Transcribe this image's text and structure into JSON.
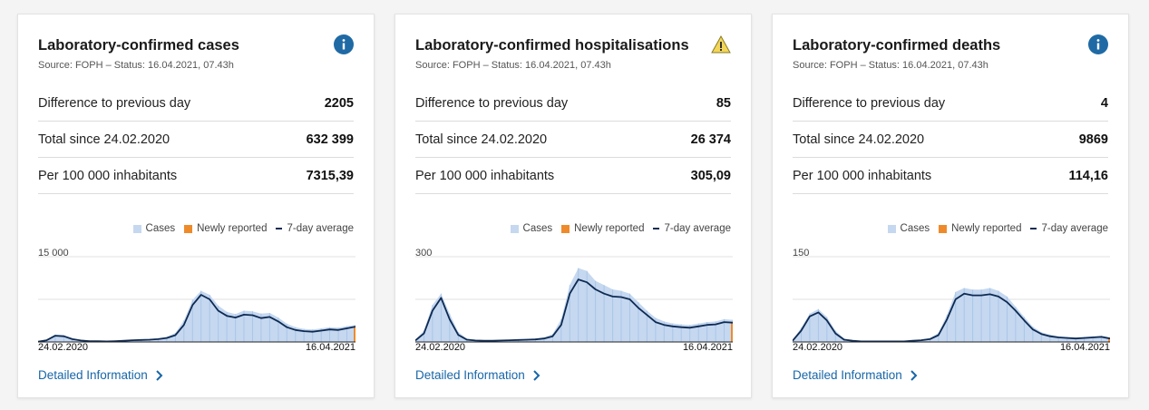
{
  "legend": {
    "cases": "Cases",
    "newly_reported": "Newly reported",
    "avg": "7-day average"
  },
  "link_label": "Detailed Information",
  "colors": {
    "bar": "#c5d8f0",
    "line": "#0e2a52",
    "new": "#ef8a2b",
    "info": "#1f6aa5",
    "warning": "#f2d65a"
  },
  "cards": [
    {
      "title": "Laboratory-confirmed cases",
      "source": "Source: FOPH – Status: 16.04.2021, 07.43h",
      "status_icon": "info-icon",
      "rows": [
        {
          "label": "Difference to previous day",
          "value": "2205"
        },
        {
          "label": "Total since 24.02.2020",
          "value": "632 399"
        },
        {
          "label": "Per 100 000 inhabitants",
          "value": "7315,39"
        }
      ],
      "chart_data": {
        "type": "area",
        "ymax_label": "15 000",
        "x_start": "24.02.2020",
        "x_end": "16.04.2021",
        "ylim": [
          0,
          15000
        ],
        "avg": [
          50,
          300,
          1100,
          1000,
          500,
          250,
          150,
          120,
          100,
          150,
          200,
          300,
          350,
          400,
          500,
          700,
          1200,
          3000,
          6500,
          8300,
          7500,
          5500,
          4600,
          4300,
          4800,
          4700,
          4200,
          4400,
          3600,
          2600,
          2100,
          1900,
          1800,
          2000,
          2200,
          2100,
          2400,
          2700
        ],
        "bars": [
          70,
          400,
          1300,
          1200,
          650,
          350,
          220,
          170,
          150,
          200,
          260,
          380,
          450,
          520,
          650,
          900,
          1600,
          3800,
          7400,
          9000,
          8300,
          6400,
          5300,
          4900,
          5500,
          5400,
          5000,
          5100,
          4300,
          3200,
          2600,
          2300,
          2200,
          2400,
          2600,
          2500,
          2800,
          3000
        ]
      }
    },
    {
      "title": "Laboratory-confirmed hospitalisations",
      "source": "Source: FOPH – Status: 16.04.2021, 07.43h",
      "status_icon": "warning-icon",
      "rows": [
        {
          "label": "Difference to previous day",
          "value": "85"
        },
        {
          "label": "Total since 24.02.2020",
          "value": "26 374"
        },
        {
          "label": "Per 100 000 inhabitants",
          "value": "305,09"
        }
      ],
      "chart_data": {
        "type": "area",
        "ymax_label": "300",
        "x_start": "24.02.2020",
        "x_end": "16.04.2021",
        "ylim": [
          0,
          300
        ],
        "avg": [
          5,
          30,
          110,
          155,
          80,
          25,
          8,
          5,
          4,
          4,
          5,
          6,
          7,
          8,
          9,
          12,
          20,
          60,
          170,
          220,
          210,
          185,
          170,
          160,
          158,
          150,
          120,
          95,
          70,
          60,
          55,
          52,
          50,
          55,
          60,
          62,
          70,
          68
        ],
        "bars": [
          8,
          40,
          130,
          170,
          100,
          35,
          12,
          8,
          6,
          6,
          7,
          8,
          9,
          10,
          12,
          16,
          28,
          80,
          200,
          260,
          250,
          215,
          200,
          185,
          180,
          170,
          140,
          110,
          85,
          72,
          65,
          62,
          60,
          65,
          70,
          72,
          80,
          78
        ]
      }
    },
    {
      "title": "Laboratory-confirmed deaths",
      "source": "Source: FOPH – Status: 16.04.2021, 07.43h",
      "status_icon": "info-icon",
      "rows": [
        {
          "label": "Difference to previous day",
          "value": "4"
        },
        {
          "label": "Total since 24.02.2020",
          "value": "9869"
        },
        {
          "label": "Per 100 000 inhabitants",
          "value": "114,16"
        }
      ],
      "chart_data": {
        "type": "area",
        "ymax_label": "150",
        "x_start": "24.02.2020",
        "x_end": "16.04.2021",
        "ylim": [
          0,
          150
        ],
        "avg": [
          2,
          20,
          45,
          52,
          38,
          15,
          4,
          2,
          1,
          1,
          1,
          1,
          1,
          1,
          2,
          3,
          5,
          12,
          40,
          75,
          85,
          82,
          82,
          84,
          80,
          70,
          55,
          38,
          22,
          14,
          10,
          8,
          7,
          6,
          7,
          8,
          9,
          6
        ],
        "bars": [
          3,
          25,
          50,
          58,
          44,
          20,
          6,
          3,
          2,
          2,
          2,
          2,
          2,
          2,
          3,
          4,
          7,
          16,
          48,
          88,
          95,
          92,
          92,
          95,
          90,
          80,
          62,
          44,
          27,
          17,
          13,
          10,
          9,
          8,
          9,
          10,
          11,
          8
        ]
      }
    }
  ]
}
